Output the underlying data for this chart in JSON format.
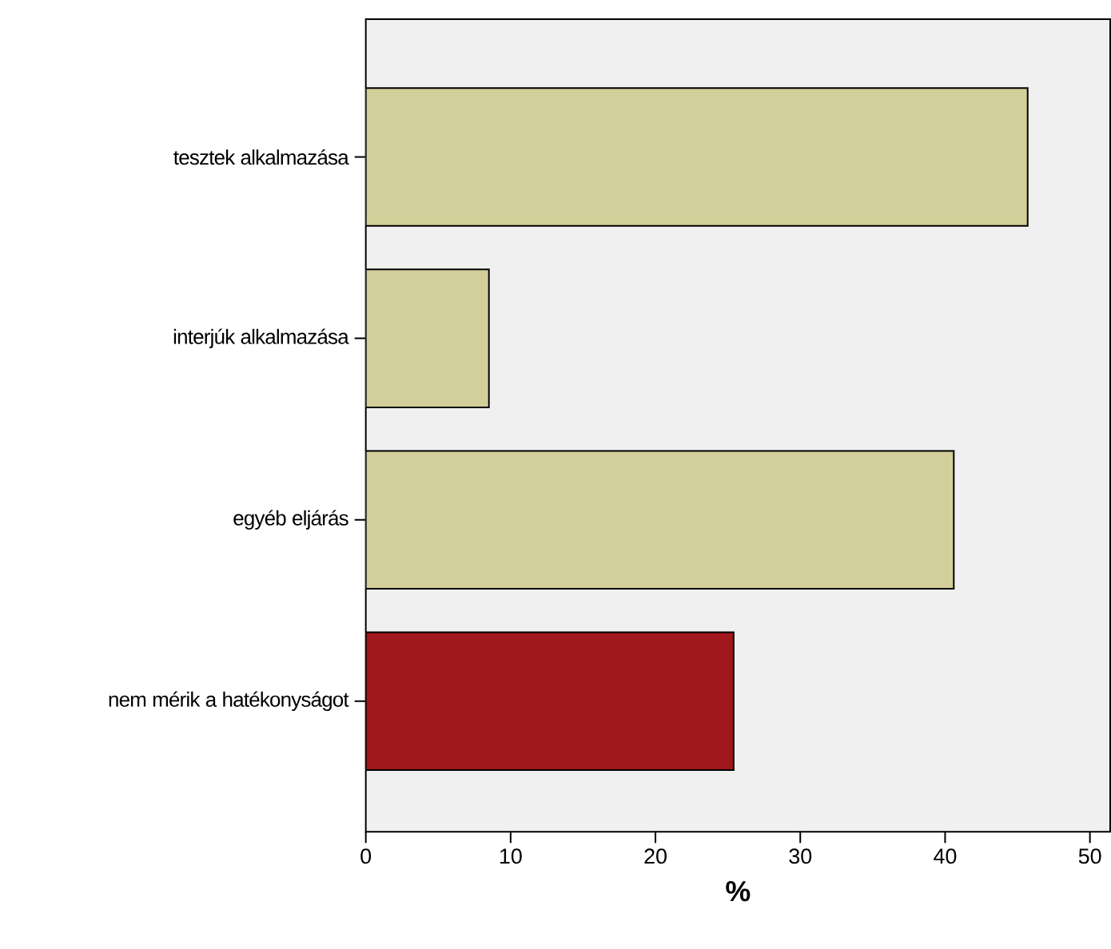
{
  "chart_data": {
    "type": "bar",
    "orientation": "horizontal",
    "xlabel": "%",
    "categories": [
      "tesztek alkalmazása",
      "interjúk alkalmazása",
      "egyéb eljárás",
      "nem mérik a hatékonyságot"
    ],
    "values": [
      45.7,
      8.5,
      40.6,
      25.4
    ],
    "colors": [
      "#d3cf9a",
      "#d3cf9a",
      "#d3cf9a",
      "#a0171c"
    ],
    "xlim": [
      0,
      51.4
    ],
    "xticks": [
      0,
      10,
      20,
      30,
      40,
      50
    ],
    "grid": false
  }
}
